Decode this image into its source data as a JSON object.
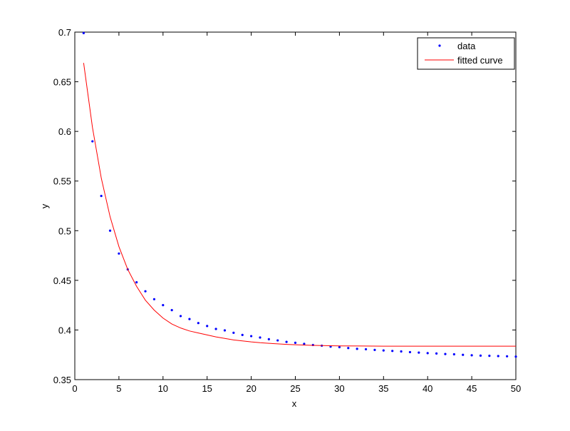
{
  "chart_data": {
    "type": "scatter",
    "title": "",
    "xlabel": "x",
    "ylabel": "y",
    "xlim": [
      0,
      50
    ],
    "ylim": [
      0.35,
      0.7
    ],
    "xticks": [
      "0",
      "5",
      "10",
      "15",
      "20",
      "25",
      "30",
      "35",
      "40",
      "45",
      "50"
    ],
    "yticks": [
      "0.35",
      "0.4",
      "0.45",
      "0.5",
      "0.55",
      "0.6",
      "0.65",
      "0.7"
    ],
    "grid": false,
    "legend_position": "top-right",
    "series": [
      {
        "name": "data",
        "style": "markers",
        "color": "#0000ff",
        "x": [
          1,
          2,
          3,
          4,
          5,
          6,
          7,
          8,
          9,
          10,
          11,
          12,
          13,
          14,
          15,
          16,
          17,
          18,
          19,
          20,
          21,
          22,
          23,
          24,
          25,
          26,
          27,
          28,
          29,
          30,
          31,
          32,
          33,
          34,
          35,
          36,
          37,
          38,
          39,
          40,
          41,
          42,
          43,
          44,
          45,
          46,
          47,
          48,
          49,
          50
        ],
        "y": [
          0.699,
          0.59,
          0.535,
          0.5,
          0.477,
          0.461,
          0.448,
          0.439,
          0.431,
          0.425,
          0.42,
          0.414,
          0.411,
          0.407,
          0.404,
          0.401,
          0.3996,
          0.3972,
          0.395,
          0.3938,
          0.3924,
          0.3907,
          0.3895,
          0.388,
          0.3871,
          0.386,
          0.3849,
          0.3842,
          0.3832,
          0.3827,
          0.3818,
          0.381,
          0.3806,
          0.3799,
          0.3794,
          0.3789,
          0.3784,
          0.3777,
          0.3772,
          0.3767,
          0.3763,
          0.3758,
          0.3755,
          0.375,
          0.3745,
          0.3742,
          0.374,
          0.3737,
          0.3735,
          0.3732
        ]
      },
      {
        "name": "fitted curve",
        "style": "line",
        "color": "#ff0000",
        "x": [
          1,
          2,
          3,
          4,
          5,
          6,
          7,
          8,
          9,
          10,
          11,
          12,
          13,
          14,
          15,
          16,
          17,
          18,
          19,
          20,
          21,
          22,
          23,
          24,
          25,
          27,
          30,
          35,
          40,
          45,
          50
        ],
        "y": [
          0.669,
          0.604,
          0.553,
          0.514,
          0.484,
          0.461,
          0.444,
          0.43,
          0.42,
          0.412,
          0.406,
          0.402,
          0.399,
          0.397,
          0.395,
          0.393,
          0.3915,
          0.39,
          0.389,
          0.388,
          0.3872,
          0.3866,
          0.386,
          0.3855,
          0.3851,
          0.3845,
          0.384,
          0.3837,
          0.3837,
          0.3837,
          0.3837
        ]
      }
    ]
  }
}
